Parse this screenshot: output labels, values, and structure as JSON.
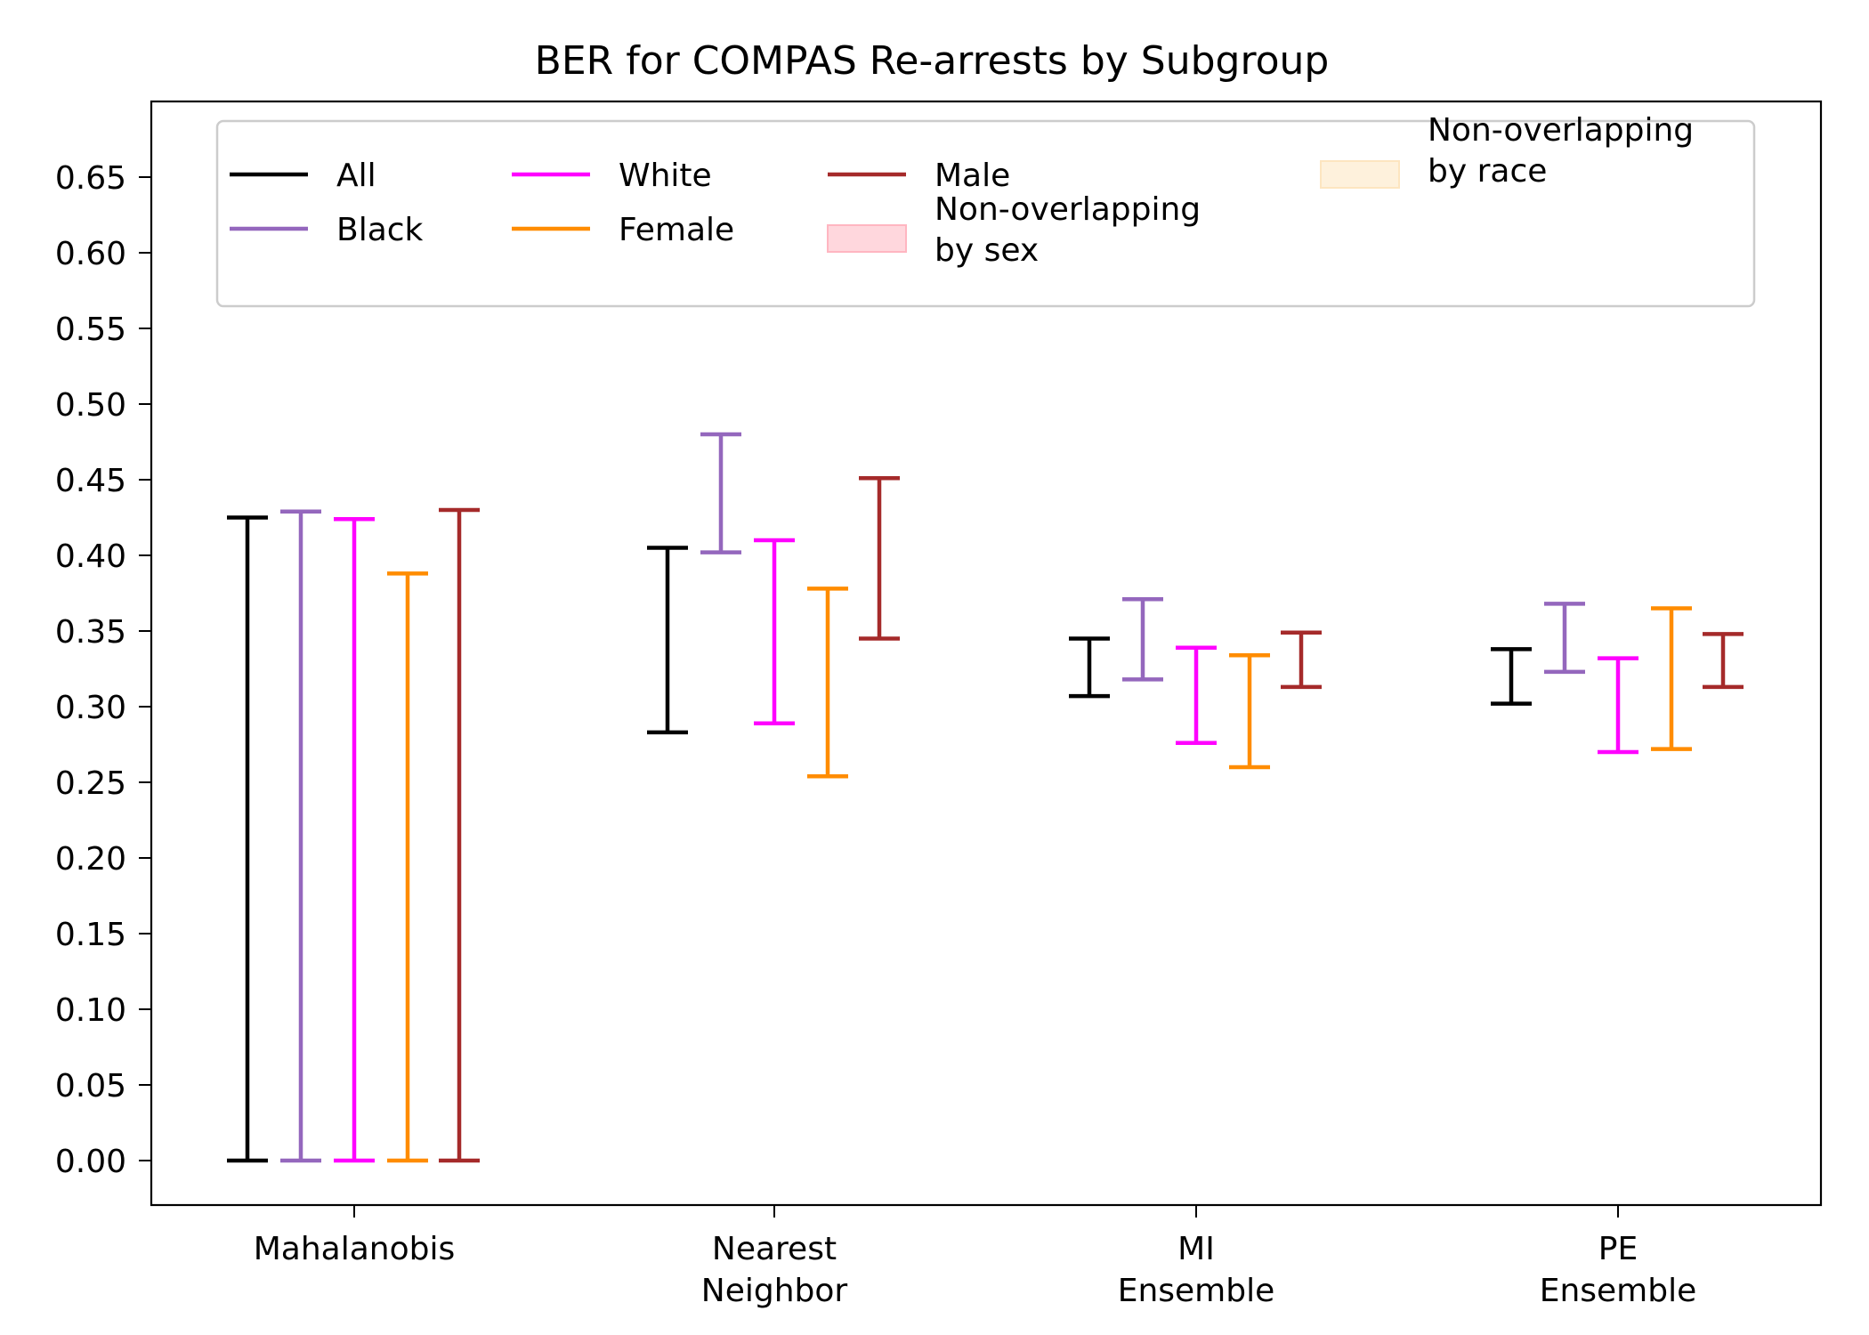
{
  "chart_data": {
    "type": "errorbar",
    "title": "BER for COMPAS Re-arrests by Subgroup",
    "xlabel": "",
    "ylabel": "",
    "ylim": [
      -0.03,
      0.7
    ],
    "yticks": [
      "0.00",
      "0.05",
      "0.10",
      "0.15",
      "0.20",
      "0.25",
      "0.30",
      "0.35",
      "0.40",
      "0.45",
      "0.50",
      "0.55",
      "0.60",
      "0.65"
    ],
    "categories": [
      [
        "Mahalanobis"
      ],
      [
        "Nearest",
        "Neighbor"
      ],
      [
        "MI",
        "Ensemble"
      ],
      [
        "PE",
        "Ensemble"
      ]
    ],
    "series": [
      {
        "name": "All",
        "color": "#000000",
        "intervals": [
          [
            0.0,
            0.425
          ],
          [
            0.283,
            0.405
          ],
          [
            0.307,
            0.345
          ],
          [
            0.302,
            0.338
          ]
        ]
      },
      {
        "name": "Black",
        "color": "#9467bd",
        "intervals": [
          [
            0.0,
            0.429
          ],
          [
            0.402,
            0.48
          ],
          [
            0.318,
            0.371
          ],
          [
            0.323,
            0.368
          ]
        ]
      },
      {
        "name": "White",
        "color": "#ff00ff",
        "intervals": [
          [
            0.0,
            0.424
          ],
          [
            0.289,
            0.41
          ],
          [
            0.276,
            0.339
          ],
          [
            0.27,
            0.332
          ]
        ]
      },
      {
        "name": "Female",
        "color": "#ff8c00",
        "intervals": [
          [
            0.0,
            0.388
          ],
          [
            0.254,
            0.378
          ],
          [
            0.26,
            0.334
          ],
          [
            0.272,
            0.365
          ]
        ]
      },
      {
        "name": "Male",
        "color": "#a52a2a",
        "intervals": [
          [
            0.0,
            0.43
          ],
          [
            0.345,
            0.451
          ],
          [
            0.313,
            0.349
          ],
          [
            0.313,
            0.348
          ]
        ]
      }
    ],
    "legend": {
      "placement": "top",
      "patches": [
        {
          "label_lines": [
            "Non-overlapping",
            "by sex"
          ],
          "color": "#ffb6c1"
        },
        {
          "label_lines": [
            "Non-overlapping",
            "by race"
          ],
          "color": "#fde5c0"
        }
      ]
    },
    "grid": false
  }
}
